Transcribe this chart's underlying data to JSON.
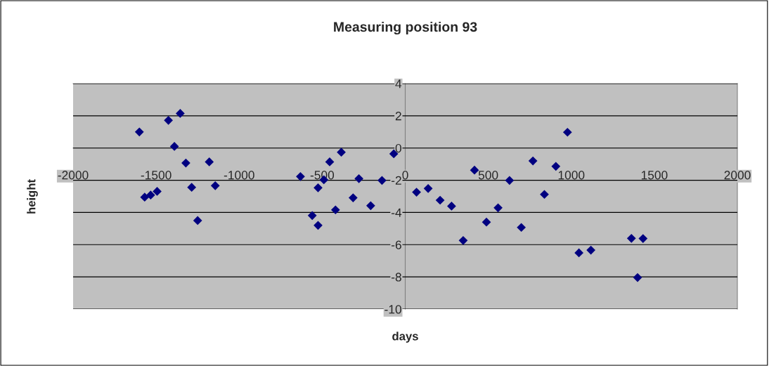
{
  "chart_data": {
    "type": "scatter",
    "title": "Measuring position 93",
    "xlabel": "days",
    "ylabel": "height",
    "series": [
      {
        "color": "#000080",
        "x": [
          -1601,
          -1569,
          -1533,
          -1494,
          -1426,
          -1390,
          -1355,
          -1321,
          -1286,
          -1250,
          -1180,
          -1144,
          -631,
          -560,
          -525,
          -525,
          -490,
          -455,
          -420,
          -385,
          -314,
          -279,
          -208,
          -140,
          -69,
          68,
          138,
          210,
          279,
          349,
          417,
          489,
          559,
          628,
          699,
          769,
          838,
          907,
          977,
          1046,
          1118,
          1362,
          1399,
          1432
        ],
        "values": [
          1.0,
          -3.05,
          -2.92,
          -2.69,
          1.72,
          0.1,
          2.15,
          -0.93,
          -2.44,
          -4.5,
          -0.86,
          -2.34,
          -1.77,
          -4.19,
          -2.47,
          -4.8,
          -1.97,
          -0.86,
          -3.84,
          -0.26,
          -3.09,
          -1.9,
          -3.58,
          -2.01,
          -0.36,
          -2.74,
          -2.51,
          -3.24,
          -3.61,
          -5.74,
          -1.37,
          -4.6,
          -3.71,
          -2.01,
          -4.93,
          -0.8,
          -2.88,
          -1.14,
          0.98,
          -6.51,
          -6.34,
          -5.61,
          -8.04,
          -5.62
        ]
      }
    ],
    "marker": "diamond",
    "xlim": [
      -2000,
      2000
    ],
    "ylim": [
      -10,
      4
    ],
    "xticks": [
      -2000,
      -1500,
      -1000,
      -500,
      0,
      500,
      1000,
      1500,
      2000
    ],
    "yticks": [
      -10,
      -8,
      -6,
      -4,
      -2,
      0,
      2,
      4
    ],
    "grid": "y",
    "legend": false
  }
}
